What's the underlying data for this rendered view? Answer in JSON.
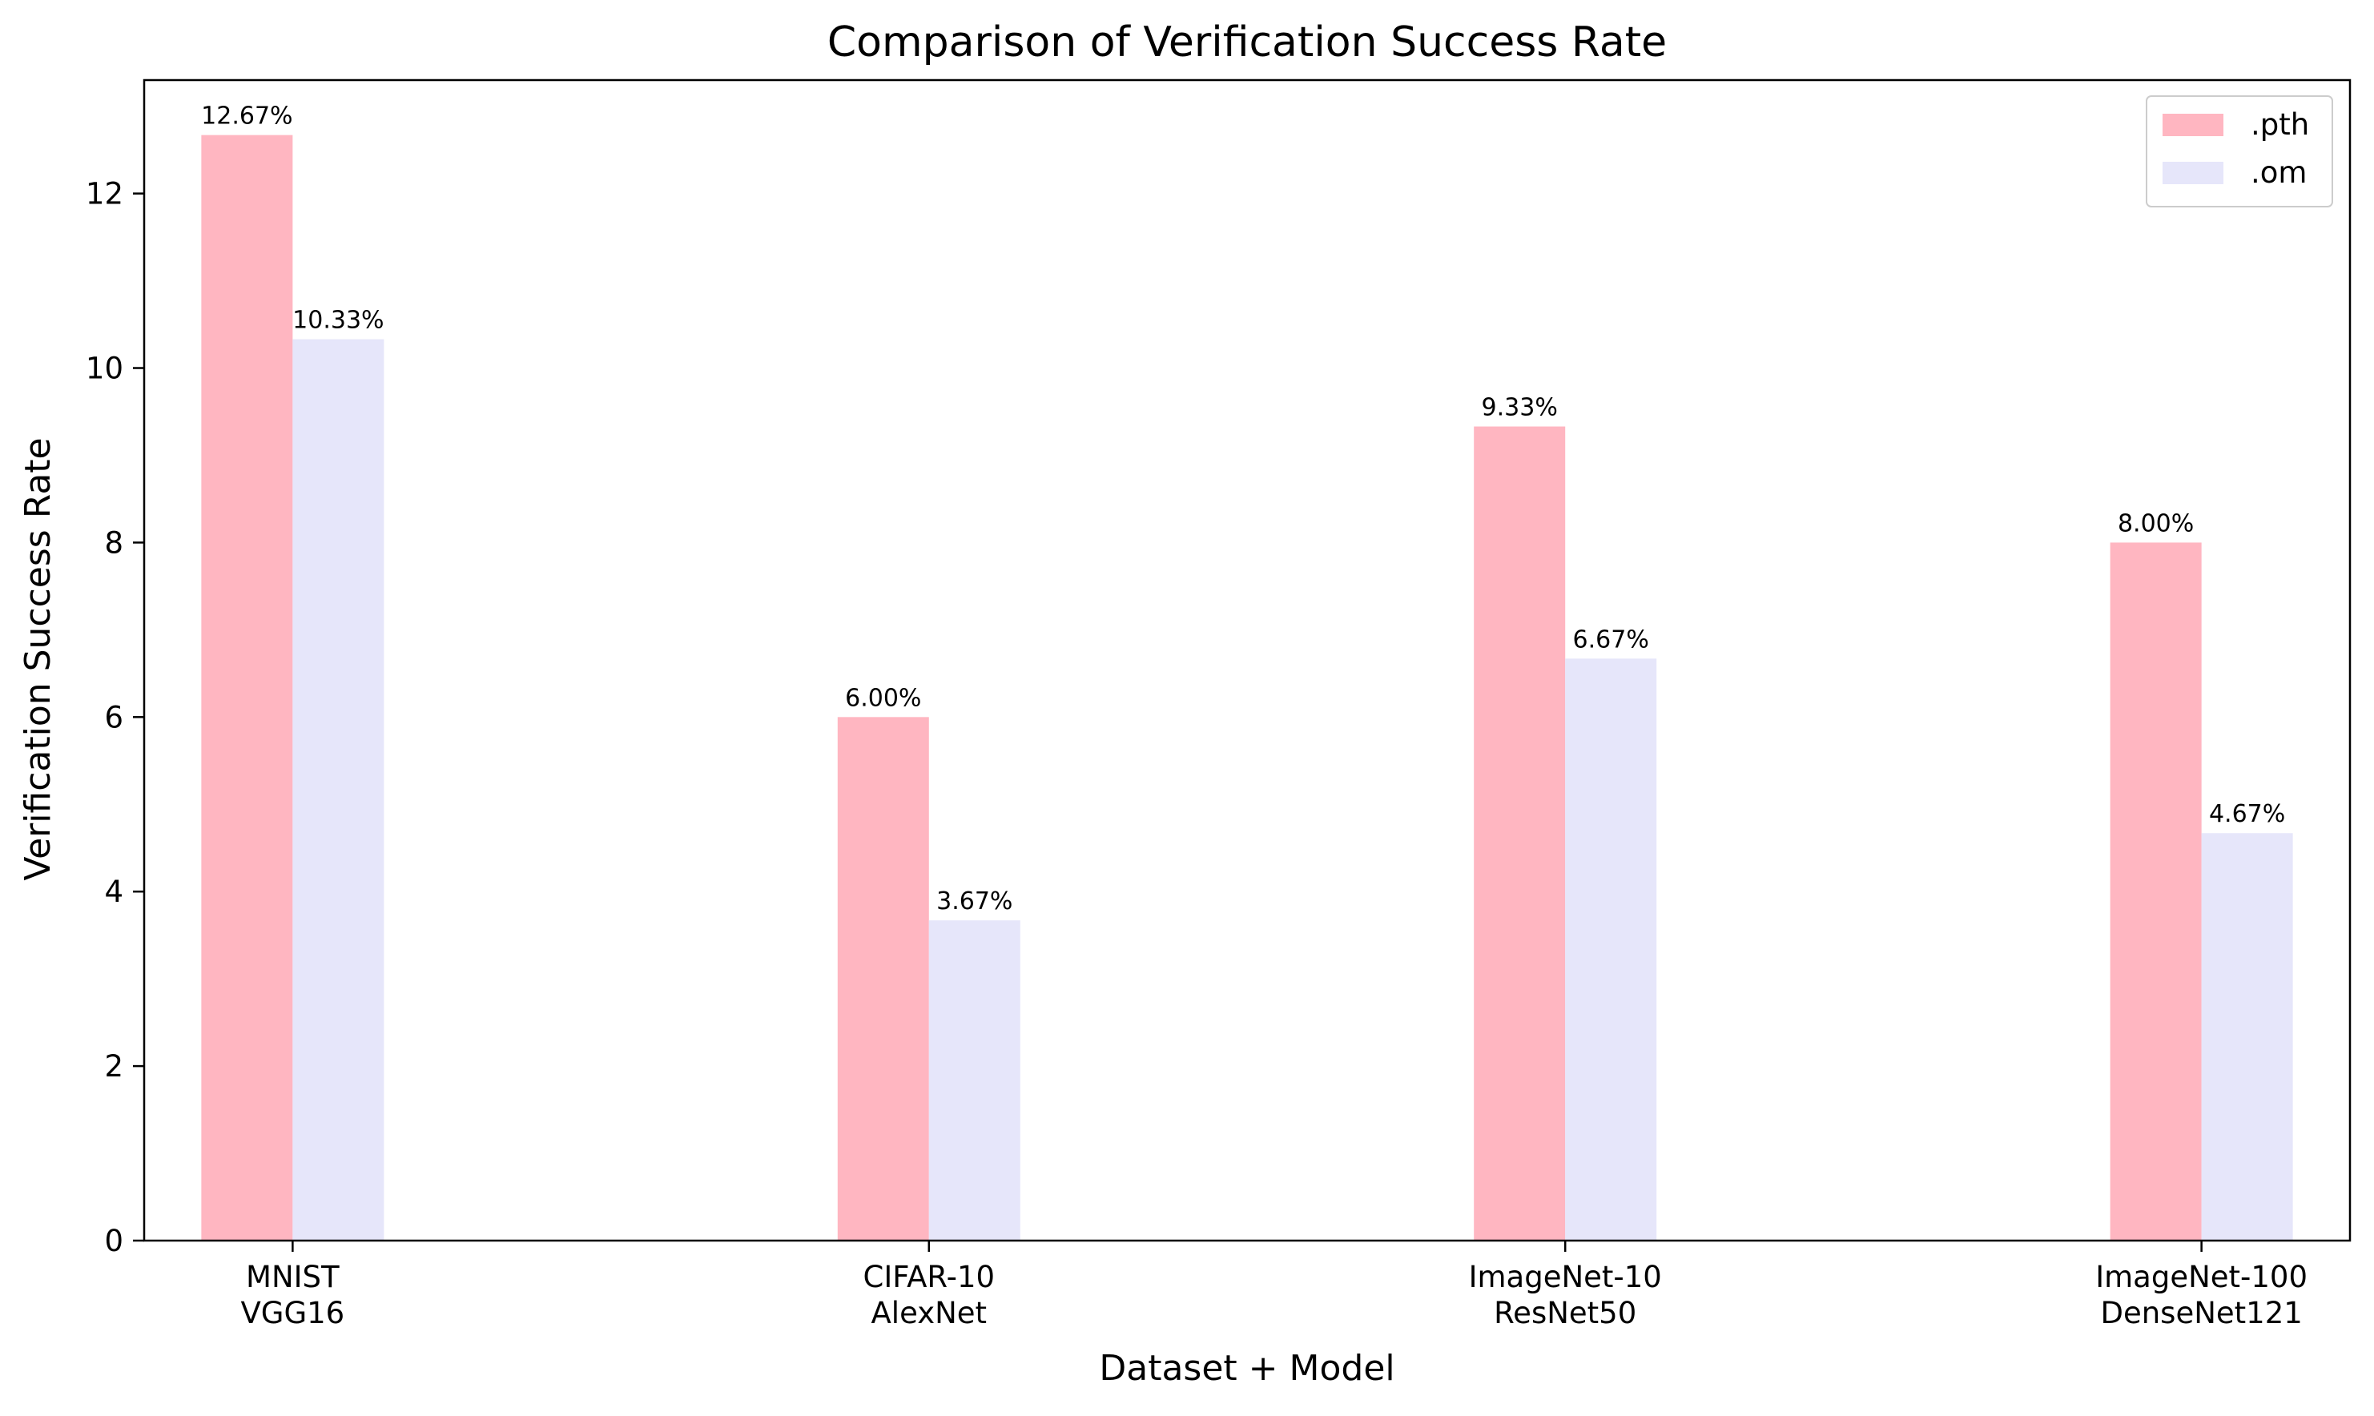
{
  "chart_data": {
    "type": "bar",
    "title": "Comparison of Verification Success Rate",
    "xlabel": "Dataset + Model",
    "ylabel": "Verification Success Rate",
    "categories": [
      [
        "MNIST",
        "VGG16"
      ],
      [
        "CIFAR-10",
        "AlexNet"
      ],
      [
        "ImageNet-10",
        "ResNet50"
      ],
      [
        "ImageNet-100",
        "DenseNet121"
      ]
    ],
    "series": [
      {
        "name": ".pth",
        "color": "#ffb6c1",
        "values": [
          12.67,
          6.0,
          9.33,
          8.0
        ],
        "labels": [
          "12.67%",
          "6.00%",
          "9.33%",
          "8.00%"
        ]
      },
      {
        "name": ".om",
        "color": "#e6e6fa",
        "values": [
          10.33,
          3.67,
          6.67,
          4.67
        ],
        "labels": [
          "10.33%",
          "3.67%",
          "6.67%",
          "4.67%"
        ]
      }
    ],
    "ylim": [
      0,
      13.3
    ],
    "yticks": [
      0,
      2,
      4,
      6,
      8,
      10,
      12
    ],
    "grid": false,
    "legend": "top-right"
  }
}
